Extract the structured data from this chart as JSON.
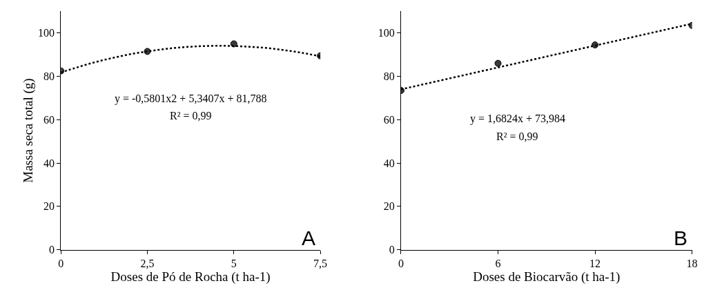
{
  "chart_data": [
    {
      "type": "scatter",
      "xlabel": "Doses de Pó de Rocha (t ha-1)",
      "ylabel": "Massa seca total (g)",
      "x": [
        0,
        2.5,
        5,
        7.5
      ],
      "series": [
        {
          "color": "#3a3a3a",
          "marker": "circle",
          "values": [
            82.5,
            91.5,
            95,
            89.5
          ]
        },
        {
          "type": "line",
          "color": "#000000",
          "line_style": "dotted",
          "marker": "none",
          "x": [
            0,
            0.5,
            1,
            1.5,
            2,
            2.5,
            3,
            3.5,
            4,
            4.5,
            5,
            5.5,
            6,
            6.5,
            7,
            7.5
          ],
          "values": [
            81.8,
            84.3,
            86.6,
            88.5,
            90.2,
            91.5,
            92.6,
            93.4,
            93.9,
            94.1,
            94.0,
            93.6,
            93.0,
            92.0,
            90.8,
            89.2
          ]
        }
      ],
      "xlim": [
        0,
        7.5
      ],
      "xticks": [
        0,
        {
          "value": 2.5,
          "label": "2,5"
        },
        5,
        {
          "value": 7.5,
          "label": "7,5"
        }
      ],
      "ylim": [
        0,
        110
      ],
      "yticks": [
        0,
        20,
        40,
        60,
        80,
        100
      ],
      "annotations": [
        "y = -0,5801x2 + 5,3407x + 81,788",
        "R² = 0,99",
        "A"
      ]
    },
    {
      "type": "scatter",
      "xlabel": "Doses de Biocarvão (t ha-1)",
      "x": [
        0,
        6,
        12,
        18
      ],
      "series": [
        {
          "color": "#3a3a3a",
          "marker": "circle",
          "values": [
            73.5,
            86,
            94.5,
            103.5
          ]
        },
        {
          "type": "line",
          "color": "#000000",
          "line_style": "dotted",
          "marker": "none",
          "x": [
            0,
            18
          ],
          "values": [
            74.0,
            104.3
          ]
        }
      ],
      "xlim": [
        0,
        18
      ],
      "xticks": [
        0,
        6,
        12,
        18
      ],
      "ylim": [
        0,
        110
      ],
      "yticks": [
        0,
        20,
        40,
        60,
        80,
        100
      ],
      "annotations": [
        "y = 1,6824x + 73,984",
        "R² = 0,99",
        "B"
      ]
    }
  ]
}
